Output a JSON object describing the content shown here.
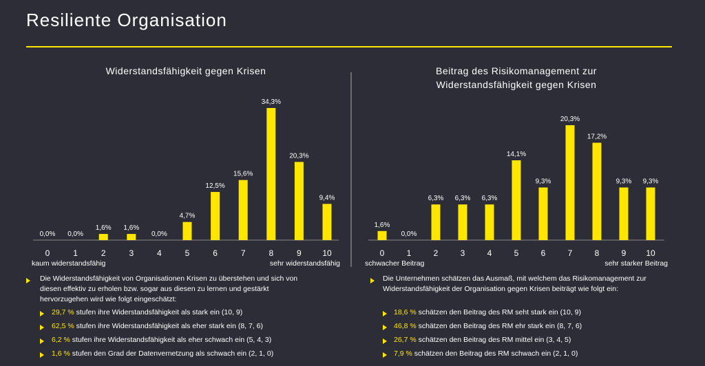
{
  "header": {
    "title": "Resiliente Organisation"
  },
  "chart_data": [
    {
      "type": "bar",
      "title": "Widerstandsfähigkeit gegen Krisen",
      "color": "#ffe600",
      "categories": [
        "0",
        "1",
        "2",
        "3",
        "4",
        "5",
        "6",
        "7",
        "8",
        "9",
        "10"
      ],
      "values": [
        0,
        0,
        1.6,
        1.6,
        0,
        4.7,
        12.5,
        15.6,
        34.3,
        20.3,
        9.4
      ],
      "value_labels": [
        "0,0%",
        "0,0%",
        "1,6%",
        "1,6%",
        "0,0%",
        "4,7%",
        "12,5%",
        "15,6%",
        "34,3%",
        "20,3%",
        "9,4%"
      ],
      "annotations": [
        "kaum widerstandsfähig",
        "sehr widerstandsfähig"
      ]
    },
    {
      "type": "bar",
      "title": "Beitrag des Risikomanagement zur\nWiderstandsfähigkeit gegen Krisen",
      "color": "#ffe600",
      "categories": [
        "0",
        "1",
        "2",
        "3",
        "4",
        "5",
        "6",
        "7",
        "8",
        "9",
        "10"
      ],
      "values": [
        1.6,
        0,
        6.3,
        6.3,
        6.3,
        14.1,
        9.3,
        20.3,
        17.2,
        9.3,
        9.3
      ],
      "value_labels": [
        "1,6%",
        "0,0%",
        "6,3%",
        "6,3%",
        "6,3%",
        "14,1%",
        "9,3%",
        "20,3%",
        "17,2%",
        "9,3%",
        "9,3%"
      ],
      "annotations": [
        "schwacher Beitrag",
        "sehr starker Beitrag"
      ]
    }
  ],
  "notes": [
    {
      "intro": "Die Widerstandsfähigkeit von Organisationen Krisen zu überstehen und sich von diesen effektiv zu erholen bzw. sogar aus diesen zu lernen und gestärkt hervorzugehen wird wie folgt eingeschätzt:",
      "items": [
        {
          "highlight": "29,7 %",
          "text": "stufen ihre Widerstandsfähigkeit als stark ein (10, 9)"
        },
        {
          "highlight": "62,5 %",
          "text": "stufen ihre Widerstandsfähigkeit als eher stark ein (8, 7, 6)"
        },
        {
          "highlight": "6,2 %",
          "text": "stufen ihre Widerstandsfähigkeit als eher schwach ein (5, 4, 3)"
        },
        {
          "highlight": "1,6 %",
          "text": "stufen den Grad der Datenvernetzung als schwach ein (2, 1, 0)"
        }
      ]
    },
    {
      "intro": "Die Unternehmen schätzen das Ausmaß, mit welchem das Risikomanagement zur Widerstandsfähigkeit der Organisation gegen Krisen beiträgt wie folgt ein:",
      "items": [
        {
          "highlight": "18,6 %",
          "text": "schätzen den Beitrag des RM seht stark ein (10, 9)"
        },
        {
          "highlight": "46,8 %",
          "text": "schätzen den Beitrag des RM ehr stark ein (8, 7, 6)"
        },
        {
          "highlight": "26,7 %",
          "text": "schätzen den Beitrag des RM mittel ein (3, 4, 5)"
        },
        {
          "highlight": "7,9 %",
          "text": "schätzen den Beitrag des RM schwach ein (2, 1, 0)"
        }
      ]
    }
  ]
}
